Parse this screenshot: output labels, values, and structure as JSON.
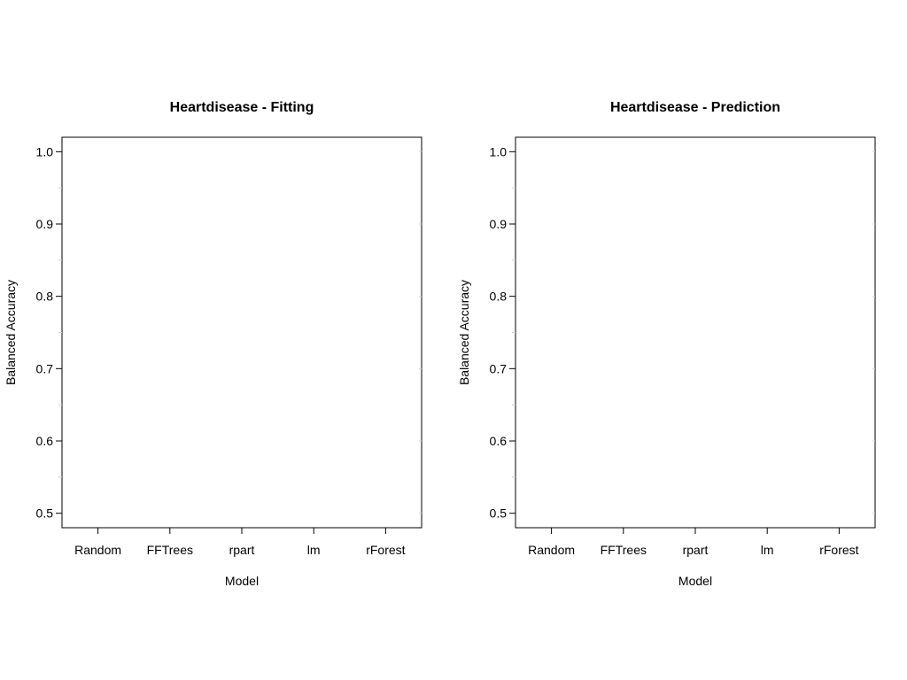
{
  "chart_data": [
    {
      "type": "scatter",
      "title": "Heartdisease - Fitting",
      "xlabel": "Model",
      "ylabel": "Balanced Accuracy",
      "categories": [
        "Random",
        "FFTrees",
        "rpart",
        "lm",
        "rForest"
      ],
      "ylim": [
        0.48,
        1.02
      ],
      "yticks": [
        0.5,
        0.6,
        0.7,
        0.8,
        0.9,
        1.0
      ],
      "ytick_labels": [
        "0.5",
        "0.6",
        "0.7",
        "0.8",
        "0.9",
        "1.0"
      ],
      "series": [],
      "grid": false,
      "legend": "none"
    },
    {
      "type": "scatter",
      "title": "Heartdisease - Prediction",
      "xlabel": "Model",
      "ylabel": "Balanced Accuracy",
      "categories": [
        "Random",
        "FFTrees",
        "rpart",
        "lm",
        "rForest"
      ],
      "ylim": [
        0.48,
        1.02
      ],
      "yticks": [
        0.5,
        0.6,
        0.7,
        0.8,
        0.9,
        1.0
      ],
      "ytick_labels": [
        "0.5",
        "0.6",
        "0.7",
        "0.8",
        "0.9",
        "1.0"
      ],
      "series": [],
      "grid": false,
      "legend": "none"
    }
  ]
}
